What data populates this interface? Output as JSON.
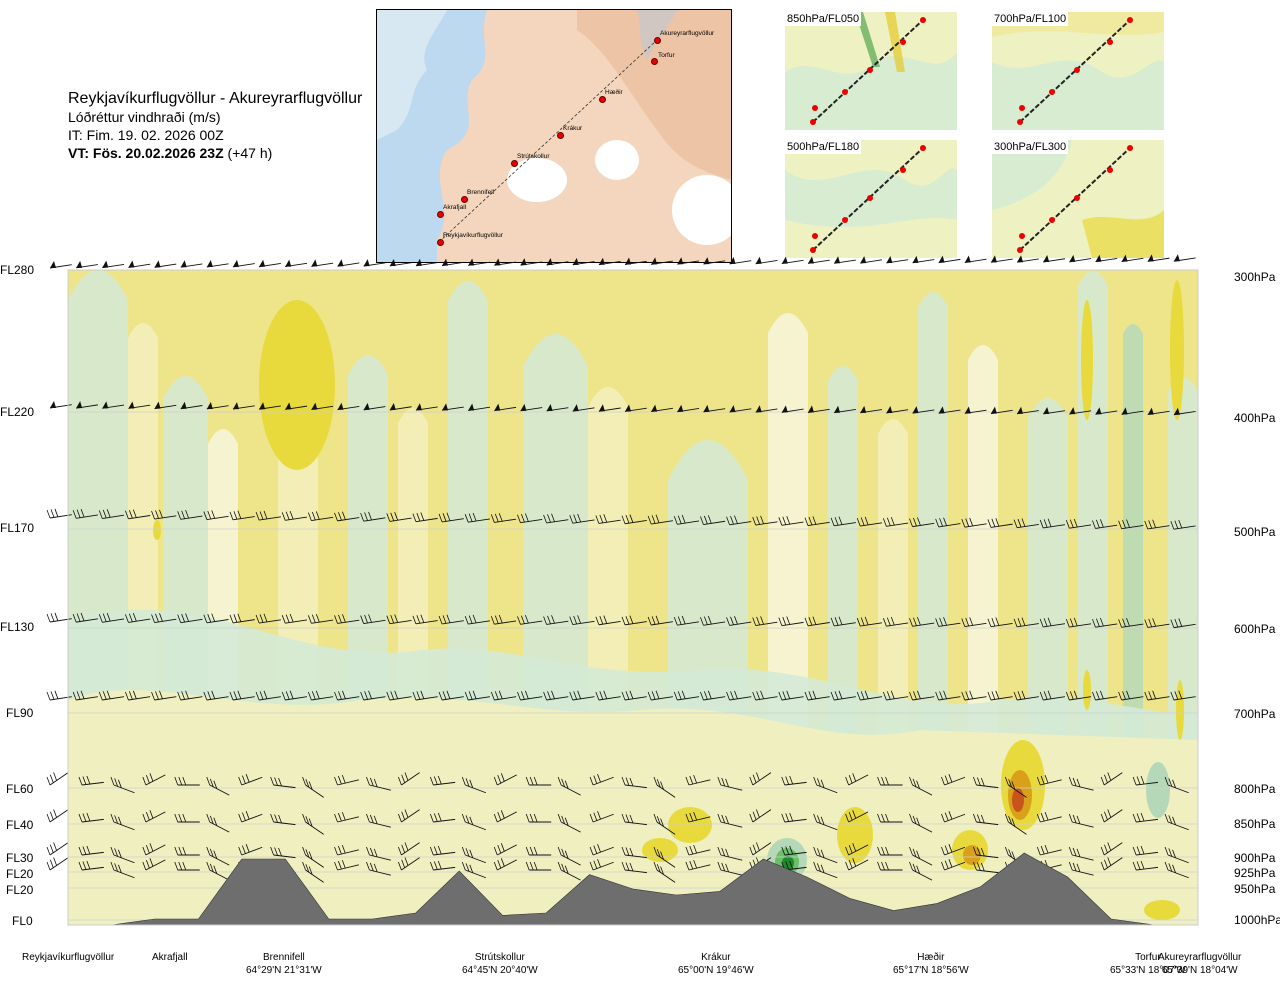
{
  "header": {
    "title": "Reykjavíkurflugvöllur - Akureyrarflugvöllur",
    "subtitle": "Lóðréttur vindhraði (m/s)",
    "issue_time": "IT: Fim. 19. 02. 2026 00Z",
    "valid_time": "VT: Fös. 20.02.2026 23Z",
    "lead": " (+47 h)"
  },
  "map": {
    "route_points": [
      {
        "name": "Akureyrarflugvöllur"
      },
      {
        "name": "Torfur"
      },
      {
        "name": "Hæðir"
      },
      {
        "name": "Krákur"
      },
      {
        "name": "Strútskollur"
      },
      {
        "name": "Brennifell"
      },
      {
        "name": "Akrafjall"
      },
      {
        "name": "Reykjavíkurflugvöllur"
      }
    ]
  },
  "insets": [
    {
      "label": "850hPa/FL050"
    },
    {
      "label": "700hPa/FL100"
    },
    {
      "label": "500hPa/FL180"
    },
    {
      "label": "300hPa/FL300"
    }
  ],
  "colors": {
    "weak_updraft": "#f2f0bc",
    "moderate_updraft": "#eee48a",
    "strong_updraft": "#e8da3c",
    "very_strong_updraft": "#d9a11a",
    "extreme_updraft": "#c8541c",
    "weak_downdraft": "#d4ead6",
    "moderate_downdraft": "#b5d9b8",
    "strong_downdraft": "#6cbf6a",
    "extreme_downdraft": "#1d8a2e",
    "neutral": "#f7f7dc",
    "terrain": "#6e6e6e"
  },
  "chart_data": {
    "type": "heatmap",
    "title": "Reykjavíkurflugvöllur - Akureyrarflugvöllur",
    "variable": "Lóðréttur vindhraði (m/s)",
    "y_left_labels": [
      "FL280",
      "FL220",
      "FL170",
      "FL130",
      "FL90",
      "FL60",
      "FL40",
      "FL30",
      "FL20",
      "FL20",
      "FL0"
    ],
    "y_right_labels": [
      "300hPa",
      "400hPa",
      "500hPa",
      "600hPa",
      "700hPa",
      "800hPa",
      "850hPa",
      "900hPa",
      "925hPa",
      "950hPa",
      "1000hPa"
    ],
    "pressure_levels_hPa": [
      300,
      400,
      500,
      600,
      700,
      800,
      850,
      900,
      925,
      950,
      1000
    ],
    "x_points": [
      {
        "name": "Reykjavíkurflugvöllur",
        "coord": ""
      },
      {
        "name": "Akrafjall",
        "coord": ""
      },
      {
        "name": "Brennifell",
        "coord": "64°29'N 21°31'W"
      },
      {
        "name": "Strútskollur",
        "coord": "64°45'N 20°40'W"
      },
      {
        "name": "Krákur",
        "coord": "65°00'N 19°46'W"
      },
      {
        "name": "Hæðir",
        "coord": "65°17'N 18°56'W"
      },
      {
        "name": "Torfur",
        "coord": "65°33'N 18°07'W"
      },
      {
        "name": "Akureyrarflugvöllur",
        "coord": "65°39'N 18°04'W"
      }
    ],
    "x_fraction_along_route": [
      0,
      0.08,
      0.17,
      0.37,
      0.55,
      0.74,
      0.93,
      1.0
    ],
    "terrain_height_fraction": [
      0.0,
      0.0,
      0.05,
      0.05,
      0.55,
      0.55,
      0.05,
      0.05,
      0.1,
      0.45,
      0.08,
      0.1,
      0.42,
      0.3,
      0.25,
      0.28,
      0.55,
      0.4,
      0.22,
      0.12,
      0.18,
      0.32,
      0.6,
      0.4,
      0.05,
      0.0,
      0.0
    ],
    "grid": true
  }
}
